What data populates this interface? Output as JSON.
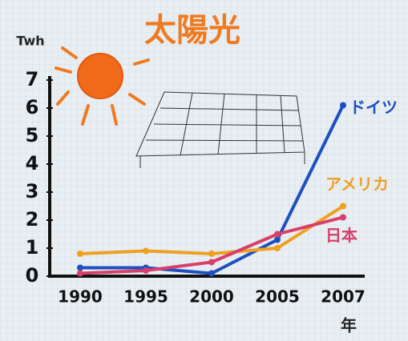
{
  "chart_data": {
    "type": "line",
    "title": "太陽光",
    "y_label": "Twh",
    "x_label": "年",
    "categories": [
      "1990",
      "1995",
      "2000",
      "2005",
      "2007"
    ],
    "series": [
      {
        "name": "ドイツ",
        "color": "#1f4fc0",
        "values": [
          0.3,
          0.3,
          0.1,
          1.3,
          6.1
        ]
      },
      {
        "name": "アメリカ",
        "color": "#f0a020",
        "values": [
          0.8,
          0.9,
          0.8,
          1.0,
          2.5
        ]
      },
      {
        "name": "日本",
        "color": "#d8406a",
        "values": [
          0.1,
          0.2,
          0.5,
          1.5,
          2.1
        ]
      }
    ],
    "ylim": [
      0,
      7
    ],
    "yticks": [
      0,
      1,
      2,
      3,
      4,
      5,
      6,
      7
    ]
  }
}
